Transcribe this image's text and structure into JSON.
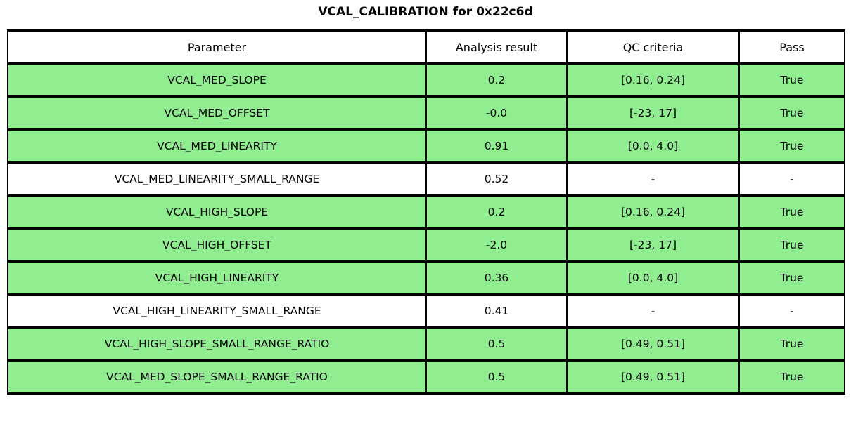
{
  "title": "VCAL_CALIBRATION for 0x22c6d",
  "colors": {
    "row_pass": "#90EE90",
    "row_default": "#ffffff",
    "border": "#000000",
    "text": "#000000"
  },
  "table": {
    "headers": [
      "Parameter",
      "Analysis result",
      "QC criteria",
      "Pass"
    ],
    "rows": [
      {
        "parameter": "VCAL_MED_SLOPE",
        "result": "0.2",
        "criteria": "[0.16, 0.24]",
        "pass": "True",
        "highlighted": true
      },
      {
        "parameter": "VCAL_MED_OFFSET",
        "result": "-0.0",
        "criteria": "[-23, 17]",
        "pass": "True",
        "highlighted": true
      },
      {
        "parameter": "VCAL_MED_LINEARITY",
        "result": "0.91",
        "criteria": "[0.0, 4.0]",
        "pass": "True",
        "highlighted": true
      },
      {
        "parameter": "VCAL_MED_LINEARITY_SMALL_RANGE",
        "result": "0.52",
        "criteria": "-",
        "pass": "-",
        "highlighted": false
      },
      {
        "parameter": "VCAL_HIGH_SLOPE",
        "result": "0.2",
        "criteria": "[0.16, 0.24]",
        "pass": "True",
        "highlighted": true
      },
      {
        "parameter": "VCAL_HIGH_OFFSET",
        "result": "-2.0",
        "criteria": "[-23, 17]",
        "pass": "True",
        "highlighted": true
      },
      {
        "parameter": "VCAL_HIGH_LINEARITY",
        "result": "0.36",
        "criteria": "[0.0, 4.0]",
        "pass": "True",
        "highlighted": true
      },
      {
        "parameter": "VCAL_HIGH_LINEARITY_SMALL_RANGE",
        "result": "0.41",
        "criteria": "-",
        "pass": "-",
        "highlighted": false
      },
      {
        "parameter": "VCAL_HIGH_SLOPE_SMALL_RANGE_RATIO",
        "result": "0.5",
        "criteria": "[0.49, 0.51]",
        "pass": "True",
        "highlighted": true
      },
      {
        "parameter": "VCAL_MED_SLOPE_SMALL_RANGE_RATIO",
        "result": "0.5",
        "criteria": "[0.49, 0.51]",
        "pass": "True",
        "highlighted": true
      }
    ]
  }
}
